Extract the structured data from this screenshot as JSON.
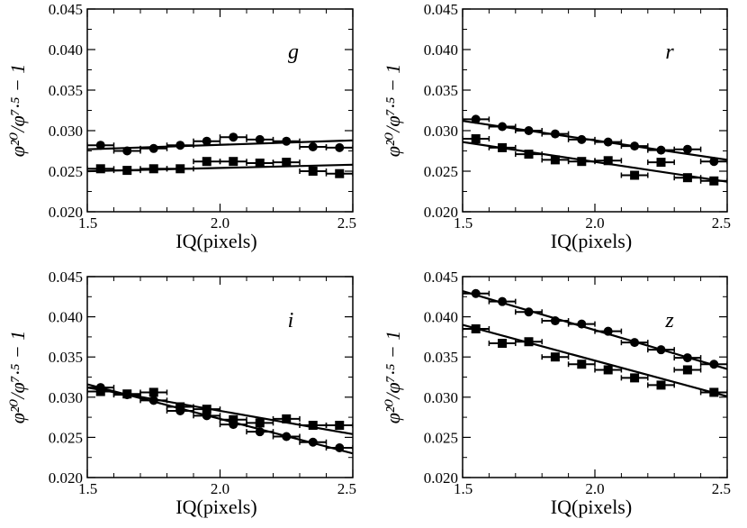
{
  "chart_data": [
    {
      "type": "scatter",
      "panel": "g",
      "band_label": "g",
      "xlabel": "IQ(pixels)",
      "ylabel": "φ²⁰/φ⁷·⁵ − 1",
      "xlim": [
        1.5,
        2.5
      ],
      "ylim": [
        0.02,
        0.045
      ],
      "xticks": [
        "1.5",
        "2.0",
        "2.5"
      ],
      "yticks": [
        "0.020",
        "0.025",
        "0.030",
        "0.035",
        "0.040",
        "0.045"
      ],
      "series": [
        {
          "name": "circles",
          "marker": "circle",
          "x": [
            1.55,
            1.65,
            1.75,
            1.85,
            1.95,
            2.05,
            2.15,
            2.25,
            2.35,
            2.45
          ],
          "y": [
            0.0282,
            0.0275,
            0.0278,
            0.0282,
            0.0287,
            0.0292,
            0.0289,
            0.0287,
            0.028,
            0.0279
          ],
          "fit": [
            [
              1.5,
              0.0277
            ],
            [
              2.5,
              0.0288
            ]
          ]
        },
        {
          "name": "squares",
          "marker": "square",
          "x": [
            1.55,
            1.65,
            1.75,
            1.85,
            1.95,
            2.05,
            2.15,
            2.25,
            2.35,
            2.45
          ],
          "y": [
            0.0253,
            0.0251,
            0.0253,
            0.0253,
            0.0262,
            0.0262,
            0.026,
            0.0261,
            0.025,
            0.0247
          ],
          "fit": [
            [
              1.5,
              0.025
            ],
            [
              2.5,
              0.0258
            ]
          ]
        }
      ]
    },
    {
      "type": "scatter",
      "panel": "r",
      "band_label": "r",
      "xlabel": "IQ(pixels)",
      "ylabel": "φ²⁰/φ⁷·⁵ − 1",
      "xlim": [
        1.5,
        2.5
      ],
      "ylim": [
        0.02,
        0.045
      ],
      "xticks": [
        "1.5",
        "2.0",
        "2.5"
      ],
      "yticks": [
        "0.020",
        "0.025",
        "0.030",
        "0.035",
        "0.040",
        "0.045"
      ],
      "series": [
        {
          "name": "circles",
          "marker": "circle",
          "x": [
            1.55,
            1.65,
            1.75,
            1.85,
            1.95,
            2.05,
            2.15,
            2.25,
            2.35,
            2.45
          ],
          "y": [
            0.0314,
            0.0305,
            0.03,
            0.0296,
            0.0289,
            0.0286,
            0.0281,
            0.0276,
            0.0277,
            0.0262
          ],
          "fit": [
            [
              1.5,
              0.0312
            ],
            [
              2.5,
              0.0264
            ]
          ]
        },
        {
          "name": "squares",
          "marker": "square",
          "x": [
            1.55,
            1.65,
            1.75,
            1.85,
            1.95,
            2.05,
            2.15,
            2.25,
            2.35,
            2.45
          ],
          "y": [
            0.029,
            0.0279,
            0.0271,
            0.0264,
            0.0262,
            0.0263,
            0.0245,
            0.0261,
            0.0242,
            0.0238
          ],
          "fit": [
            [
              1.5,
              0.0286
            ],
            [
              2.5,
              0.0237
            ]
          ]
        }
      ]
    },
    {
      "type": "scatter",
      "panel": "i",
      "band_label": "i",
      "xlabel": "IQ(pixels)",
      "ylabel": "φ²⁰/φ⁷·⁵ − 1",
      "xlim": [
        1.5,
        2.5
      ],
      "ylim": [
        0.02,
        0.045
      ],
      "xticks": [
        "1.5",
        "2.0",
        "2.5"
      ],
      "yticks": [
        "0.020",
        "0.025",
        "0.030",
        "0.035",
        "0.040",
        "0.045"
      ],
      "series": [
        {
          "name": "circles",
          "marker": "circle",
          "x": [
            1.55,
            1.65,
            1.75,
            1.85,
            1.95,
            2.05,
            2.15,
            2.25,
            2.35,
            2.45
          ],
          "y": [
            0.0312,
            0.0303,
            0.0296,
            0.0283,
            0.0277,
            0.0266,
            0.0257,
            0.0251,
            0.0244,
            0.0237
          ],
          "fit": [
            [
              1.5,
              0.0316
            ],
            [
              2.5,
              0.023
            ]
          ]
        },
        {
          "name": "squares",
          "marker": "square",
          "x": [
            1.55,
            1.65,
            1.75,
            1.85,
            1.95,
            2.05,
            2.15,
            2.25,
            2.35,
            2.45
          ],
          "y": [
            0.0307,
            0.0304,
            0.0306,
            0.0288,
            0.0285,
            0.0272,
            0.0268,
            0.0273,
            0.0265,
            0.0265
          ],
          "fit": [
            [
              1.5,
              0.0312
            ],
            [
              2.5,
              0.0254
            ]
          ]
        }
      ]
    },
    {
      "type": "scatter",
      "panel": "z",
      "band_label": "z",
      "xlabel": "IQ(pixels)",
      "ylabel": "φ²⁰/φ⁷·⁵ − 1",
      "xlim": [
        1.5,
        2.5
      ],
      "ylim": [
        0.02,
        0.045
      ],
      "xticks": [
        "1.5",
        "2.0",
        "2.5"
      ],
      "yticks": [
        "0.020",
        "0.025",
        "0.030",
        "0.035",
        "0.040",
        "0.045"
      ],
      "series": [
        {
          "name": "circles",
          "marker": "circle",
          "x": [
            1.55,
            1.65,
            1.75,
            1.85,
            1.95,
            2.05,
            2.15,
            2.25,
            2.35,
            2.45
          ],
          "y": [
            0.0429,
            0.0419,
            0.0406,
            0.0395,
            0.0391,
            0.0382,
            0.0368,
            0.0359,
            0.0349,
            0.0341
          ],
          "fit": [
            [
              1.5,
              0.0432
            ],
            [
              2.5,
              0.0335
            ]
          ]
        },
        {
          "name": "squares",
          "marker": "square",
          "x": [
            1.55,
            1.65,
            1.75,
            1.85,
            1.95,
            2.05,
            2.15,
            2.25,
            2.35,
            2.45
          ],
          "y": [
            0.0385,
            0.0367,
            0.0369,
            0.035,
            0.0341,
            0.0334,
            0.0324,
            0.0315,
            0.0334,
            0.0306
          ],
          "fit": [
            [
              1.5,
              0.039
            ],
            [
              2.5,
              0.0301
            ]
          ]
        }
      ]
    }
  ]
}
